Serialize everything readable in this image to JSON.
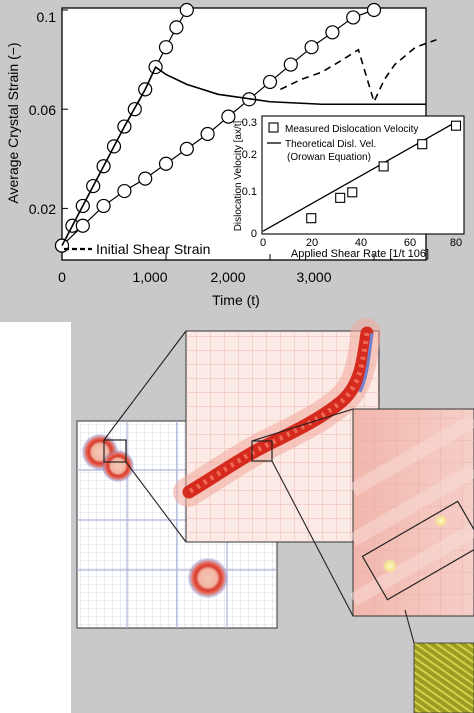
{
  "chart_data": [
    {
      "type": "line",
      "xlabel": "Time (t)",
      "ylabel": "Average Crystal Strain (−)",
      "xlim": [
        0,
        3500
      ],
      "ylim": [
        0,
        0.1
      ],
      "xticks": [
        "0",
        "1,000",
        "2,000",
        "3,000"
      ],
      "yticks": [
        "0.02",
        "0.06",
        "0.1"
      ],
      "grid": false,
      "series": [
        {
          "style": "open-circles",
          "x": [
            0,
            100,
            200,
            300,
            400,
            500,
            600,
            700,
            800,
            900,
            1000,
            1100,
            1200
          ],
          "y": [
            0.005,
            0.013,
            0.021,
            0.029,
            0.037,
            0.045,
            0.053,
            0.06,
            0.068,
            0.077,
            0.085,
            0.093,
            0.1
          ]
        },
        {
          "style": "open-circles",
          "x": [
            0,
            200,
            400,
            600,
            800,
            1000,
            1200,
            1400,
            1600,
            1800,
            2000,
            2200,
            2400,
            2600,
            2800,
            3000
          ],
          "y": [
            0.005,
            0.013,
            0.021,
            0.027,
            0.032,
            0.038,
            0.044,
            0.05,
            0.057,
            0.064,
            0.071,
            0.078,
            0.085,
            0.091,
            0.097,
            0.1
          ]
        },
        {
          "style": "solid",
          "x": [
            0,
            200,
            400,
            600,
            800,
            900,
            1000,
            1200,
            1500,
            2000,
            2500,
            3000,
            3500
          ],
          "y": [
            0.005,
            0.021,
            0.037,
            0.053,
            0.068,
            0.077,
            0.074,
            0.07,
            0.066,
            0.063,
            0.062,
            0.062,
            0.062
          ]
        },
        {
          "style": "dashed",
          "x": [
            2100,
            2300,
            2500,
            2700,
            2850,
            3000,
            3100,
            3200,
            3400,
            3600
          ],
          "y": [
            0.068,
            0.072,
            0.075,
            0.08,
            0.084,
            0.063,
            0.072,
            0.078,
            0.085,
            0.088
          ]
        }
      ],
      "annotation": "Initial Shear Strain",
      "inset": {
        "type": "scatter",
        "xlabel": "Applied Shear Rate [1/t 106]",
        "ylabel": "Dislocation Velocity [ax/t]",
        "xlim": [
          0,
          80
        ],
        "ylim": [
          0,
          0.3
        ],
        "xticks": [
          "0",
          "20",
          "40",
          "60",
          "80"
        ],
        "yticks": [
          "0",
          "0.1",
          "0.2",
          "0.3"
        ],
        "points": {
          "x": [
            20,
            32,
            37,
            50,
            66,
            80
          ],
          "y": [
            0.04,
            0.095,
            0.11,
            0.18,
            0.24,
            0.29
          ]
        },
        "line": {
          "x": [
            0,
            80
          ],
          "y": [
            0.005,
            0.3
          ]
        },
        "legend": [
          "Measured Dislocation Velocity",
          "Theoretical Disl. Vel.",
          "(Orowan Equation)"
        ]
      }
    }
  ],
  "colors": {
    "panel_gray": "#c9c9cb",
    "field_pink": "#f4c6c0",
    "dislocation_red": "#d62a1e",
    "mesh_blue": "#6e7fc9",
    "halo_yellow": "#f0e79a",
    "atoms_olive": "#8a8a1e"
  }
}
